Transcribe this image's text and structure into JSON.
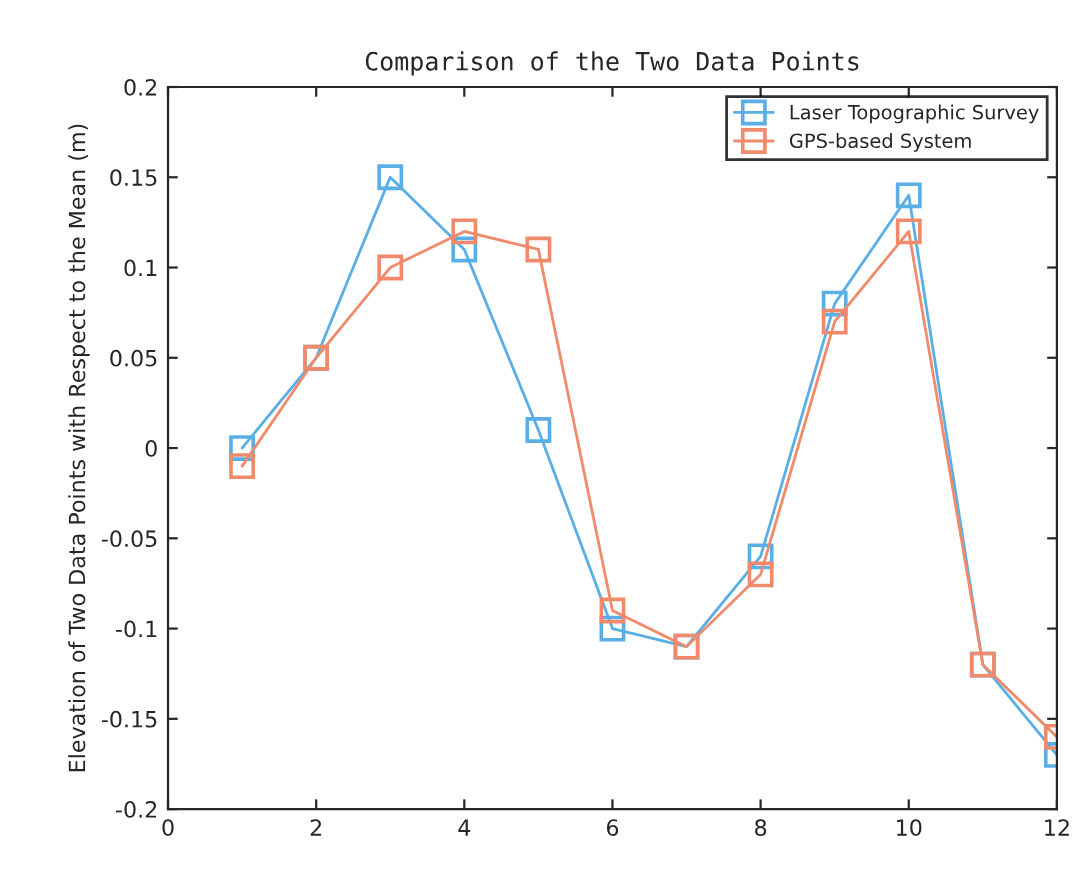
{
  "chart_data": {
    "type": "line",
    "title": "Comparison of the Two Data Points",
    "ylabel": "Elevation of Two Data Points with Respect to the Mean (m)",
    "x": [
      1,
      2,
      3,
      4,
      5,
      6,
      7,
      8,
      9,
      10,
      11,
      12
    ],
    "series": [
      {
        "name": "Laser Topographic Survey",
        "color": "#5aaee6",
        "values": [
          0,
          0.05,
          0.15,
          0.11,
          0.01,
          -0.1,
          -0.11,
          -0.06,
          0.08,
          0.14,
          -0.12,
          -0.17
        ]
      },
      {
        "name": "GPS-based System",
        "color": "#f08a6a",
        "values": [
          -0.01,
          0.05,
          0.1,
          0.12,
          0.11,
          -0.09,
          -0.11,
          -0.07,
          0.07,
          0.12,
          -0.12,
          -0.16
        ]
      }
    ],
    "xlim": [
      0,
      12
    ],
    "xticks": [
      0,
      2,
      4,
      6,
      8,
      10,
      12
    ],
    "ylim": [
      -0.2,
      0.2
    ],
    "yticks": [
      -0.2,
      -0.15,
      -0.1,
      -0.05,
      0,
      0.05,
      0.1,
      0.15,
      0.2
    ],
    "marker": "square",
    "line_style": "solid",
    "legend": "top right",
    "grid": false
  }
}
